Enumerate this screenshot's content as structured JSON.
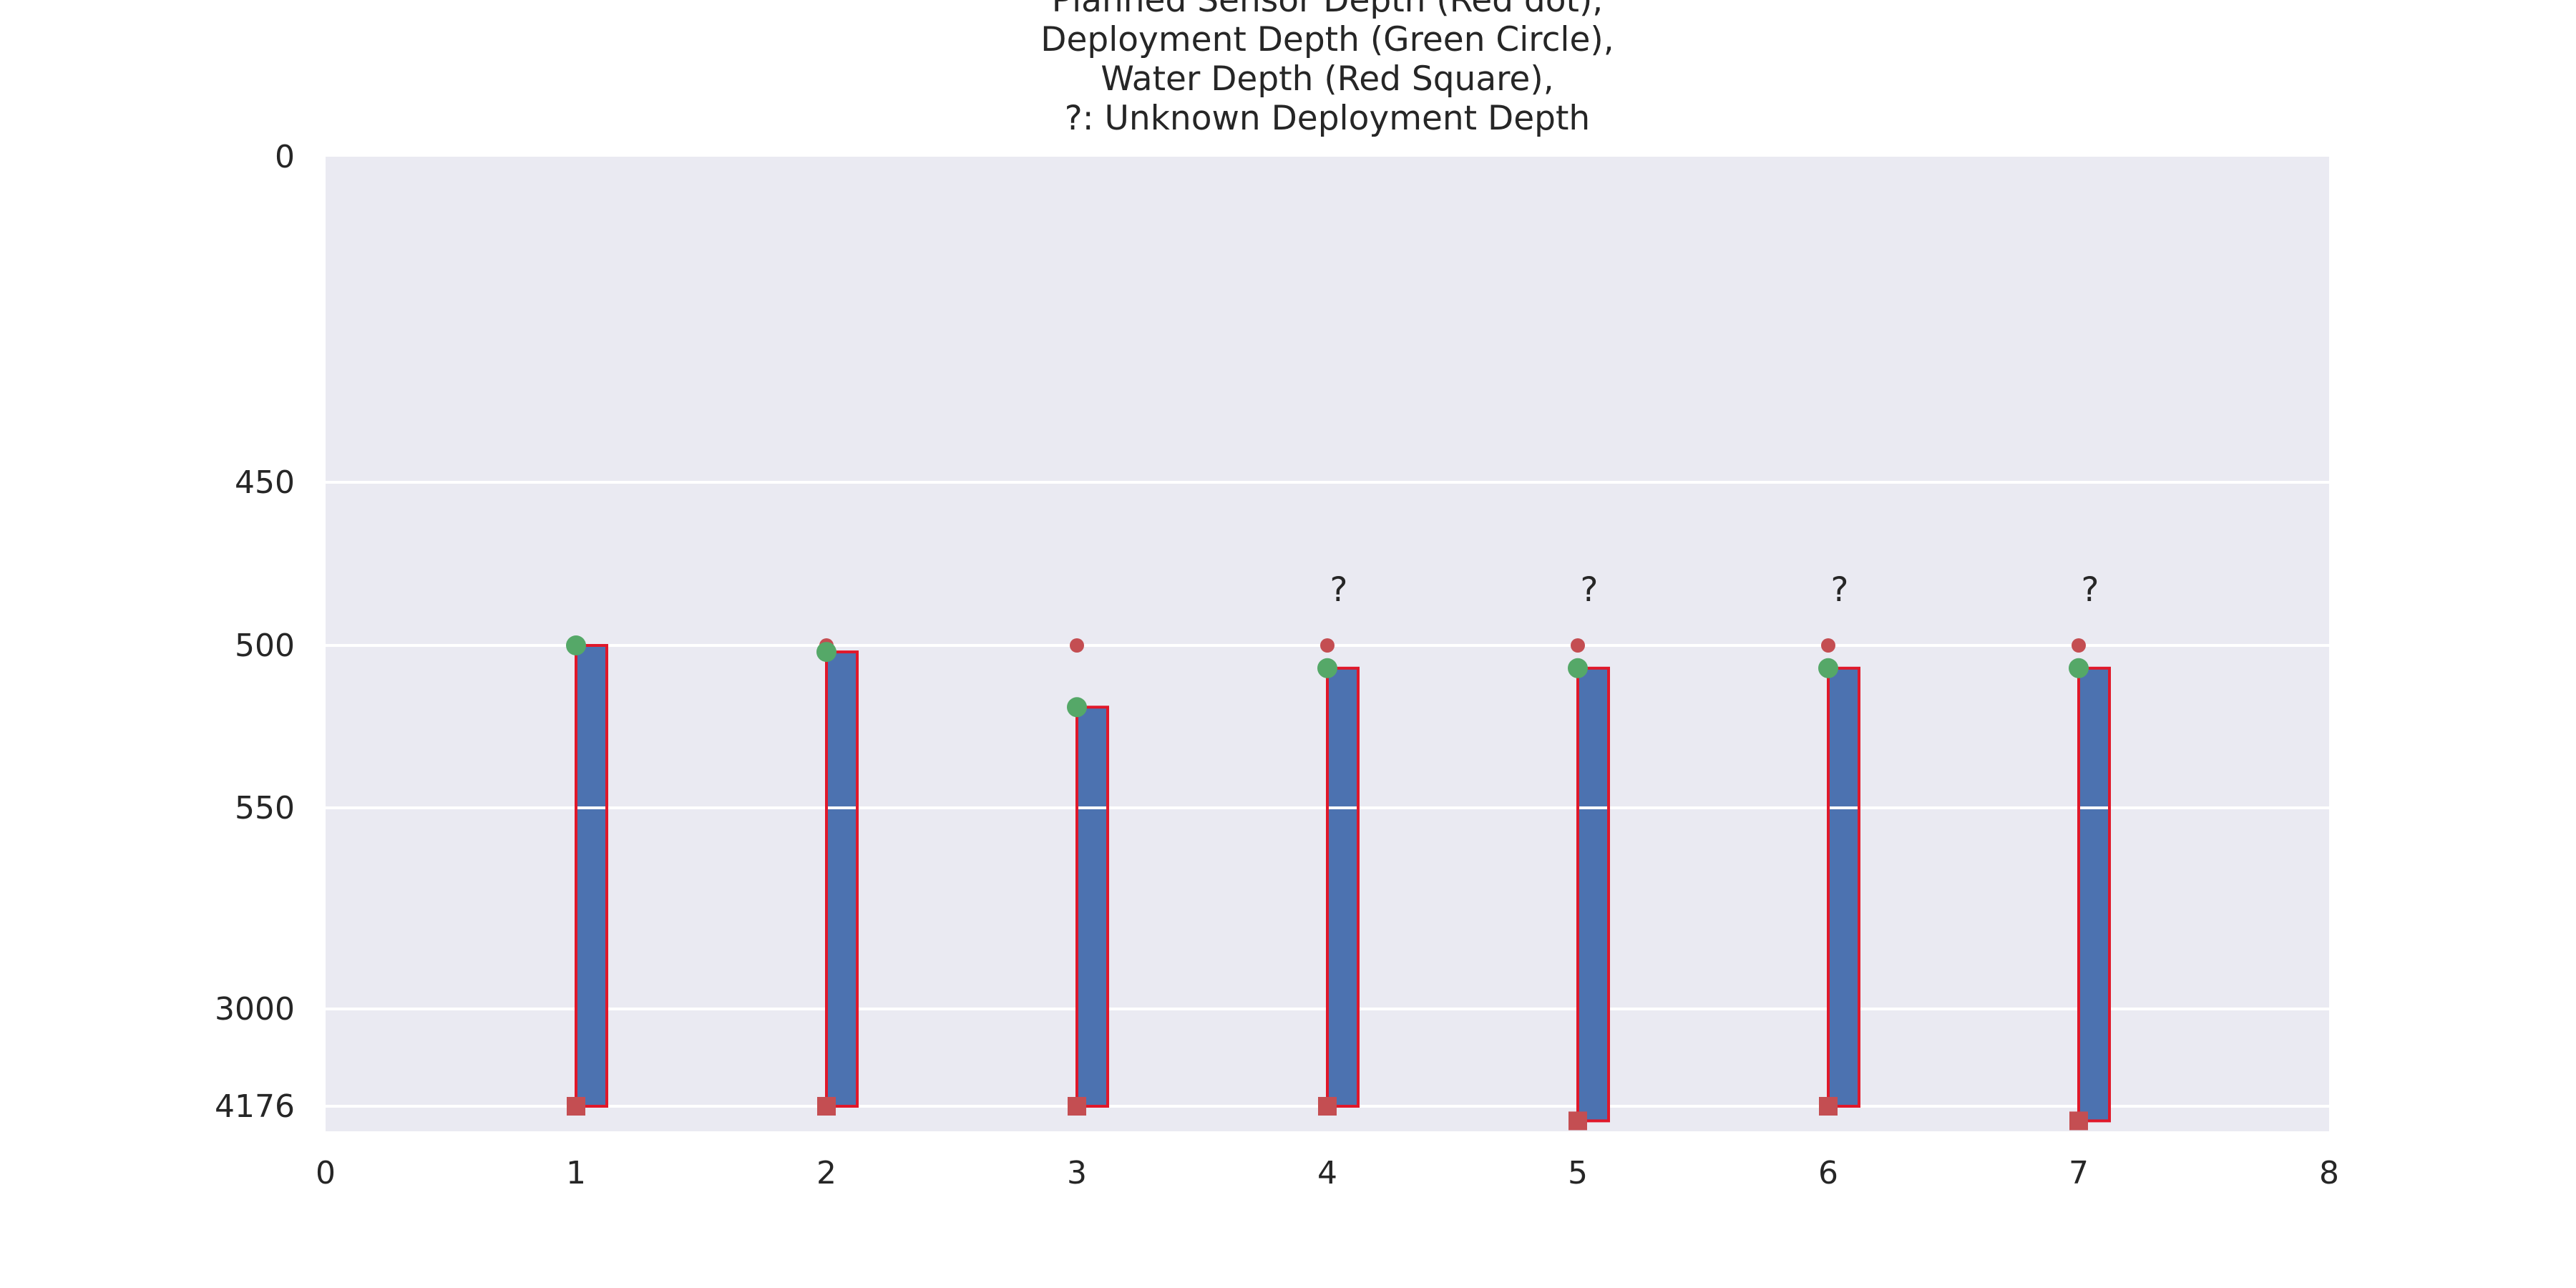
{
  "chart_data": {
    "type": "bar",
    "title": [
      "Planned Sensor Depth (Red dot),",
      "Deployment Depth (Green Circle),",
      "Water Depth (Red Square),",
      "?: Unknown Deployment Depth"
    ],
    "xlabel": "",
    "ylabel": "",
    "x_ticks": [
      "0",
      "1",
      "2",
      "3",
      "4",
      "5",
      "6",
      "7",
      "8"
    ],
    "xlim": [
      0,
      8
    ],
    "y_ticks": [
      "0",
      "450",
      "500",
      "550",
      "3000",
      "4176"
    ],
    "y_scale": "piecewise (0–450, 450–500, 500–550, 550–3000, 3000–4176 segments)",
    "ylim": [
      0,
      4200
    ],
    "y_inverted": true,
    "grid": true,
    "legend": "none",
    "x": [
      1,
      2,
      3,
      4,
      5,
      6,
      7
    ],
    "series": [
      {
        "values": [
          500,
          500,
          500,
          500,
          500,
          500,
          500
        ]
      },
      {
        "values": [
          500,
          502,
          519,
          507,
          507,
          507,
          507
        ]
      },
      {
        "values": [
          4176,
          4176,
          4176,
          4176,
          4190,
          4176,
          4190
        ]
      }
    ],
    "annotations": [
      {
        "x": 4,
        "text": "?"
      },
      {
        "x": 5,
        "text": "?"
      },
      {
        "x": 6,
        "text": "?"
      },
      {
        "x": 7,
        "text": "?"
      }
    ],
    "colors": {
      "plot_background": "#eaeaf2",
      "grid": "#ffffff",
      "bar_fill": "#4c72b0",
      "bar_edge": "#e0182a",
      "planned": "#c44e52",
      "deployment": "#55a868",
      "water": "#c44e52"
    }
  }
}
